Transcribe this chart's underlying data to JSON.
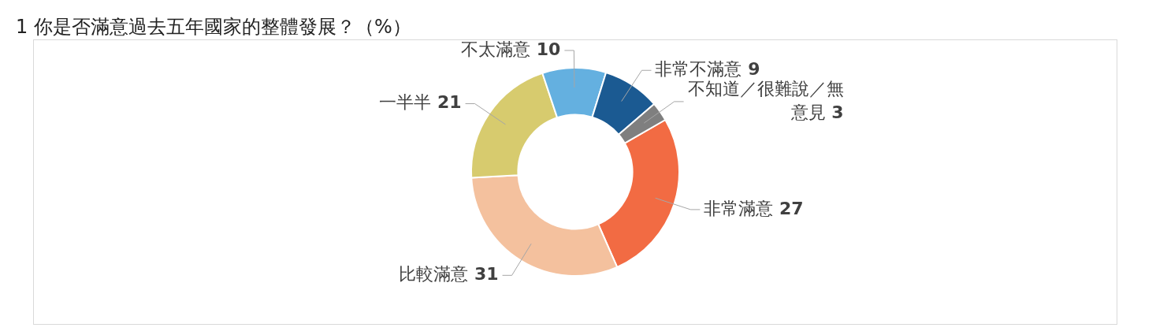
{
  "chart_data": {
    "type": "donut",
    "title": "1 你是否滿意過去五年國家的整體發展？（%）",
    "categories": [
      "非常滿意",
      "比較滿意",
      "一半半",
      "不太滿意",
      "非常不滿意",
      "不知道／很難說／無意見"
    ],
    "values": [
      27,
      31,
      21,
      10,
      9,
      3
    ],
    "colors": [
      "#f26b43",
      "#f4c19e",
      "#d7cb6e",
      "#64b0e0",
      "#1b5a92",
      "#7f7f7f"
    ],
    "data_labels": true,
    "legend": false
  }
}
